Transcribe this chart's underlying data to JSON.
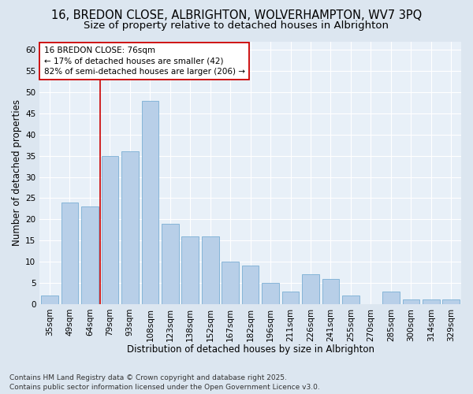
{
  "title1": "16, BREDON CLOSE, ALBRIGHTON, WOLVERHAMPTON, WV7 3PQ",
  "title2": "Size of property relative to detached houses in Albrighton",
  "xlabel": "Distribution of detached houses by size in Albrighton",
  "ylabel": "Number of detached properties",
  "categories": [
    "35sqm",
    "49sqm",
    "64sqm",
    "79sqm",
    "93sqm",
    "108sqm",
    "123sqm",
    "138sqm",
    "152sqm",
    "167sqm",
    "182sqm",
    "196sqm",
    "211sqm",
    "226sqm",
    "241sqm",
    "255sqm",
    "270sqm",
    "285sqm",
    "300sqm",
    "314sqm",
    "329sqm"
  ],
  "values": [
    2,
    24,
    23,
    35,
    36,
    48,
    19,
    16,
    16,
    10,
    9,
    5,
    3,
    7,
    6,
    2,
    0,
    3,
    1,
    1,
    1
  ],
  "bar_color": "#b8cfe8",
  "bar_edge_color": "#7aafd4",
  "vline_x_index": 2.5,
  "vline_color": "#cc0000",
  "annotation_line1": "16 BREDON CLOSE: 76sqm",
  "annotation_line2": "← 17% of detached houses are smaller (42)",
  "annotation_line3": "82% of semi-detached houses are larger (206) →",
  "annotation_box_color": "#ffffff",
  "annotation_box_edge_color": "#cc0000",
  "ylim": [
    0,
    62
  ],
  "yticks": [
    0,
    5,
    10,
    15,
    20,
    25,
    30,
    35,
    40,
    45,
    50,
    55,
    60
  ],
  "fig_bg_color": "#dce6f0",
  "plot_bg_color": "#e8f0f8",
  "footer": "Contains HM Land Registry data © Crown copyright and database right 2025.\nContains public sector information licensed under the Open Government Licence v3.0.",
  "title1_fontsize": 10.5,
  "title2_fontsize": 9.5,
  "xlabel_fontsize": 8.5,
  "ylabel_fontsize": 8.5,
  "tick_fontsize": 7.5,
  "annotation_fontsize": 7.5,
  "footer_fontsize": 6.5
}
